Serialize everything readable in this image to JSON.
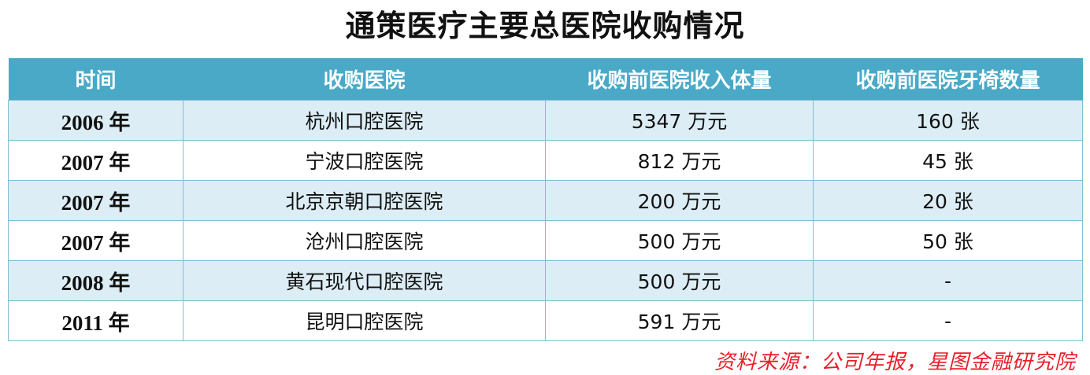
{
  "title": "通策医疗主要总医院收购情况",
  "table": {
    "headers": [
      "时间",
      "收购医院",
      "收购前医院收入体量",
      "收购前医院牙椅数量"
    ],
    "rows": [
      {
        "year": "2006 年",
        "hospital": "杭州口腔医院",
        "revenue": "5347 万元",
        "chairs": "160 张"
      },
      {
        "year": "2007 年",
        "hospital": "宁波口腔医院",
        "revenue": "812 万元",
        "chairs": "45 张"
      },
      {
        "year": "2007 年",
        "hospital": "北京京朝口腔医院",
        "revenue": "200 万元",
        "chairs": "20 张"
      },
      {
        "year": "2007 年",
        "hospital": "沧州口腔医院",
        "revenue": "500 万元",
        "chairs": "50 张"
      },
      {
        "year": "2008 年",
        "hospital": "黄石现代口腔医院",
        "revenue": "500 万元",
        "chairs": "-"
      },
      {
        "year": "2011 年",
        "hospital": "昆明口腔医院",
        "revenue": "591 万元",
        "chairs": "-"
      }
    ]
  },
  "source": "资料来源：公司年报，星图金融研究院",
  "colors": {
    "header": "#4aa9c6",
    "row_alt": "#dcedf5",
    "source": "#e8202a"
  }
}
